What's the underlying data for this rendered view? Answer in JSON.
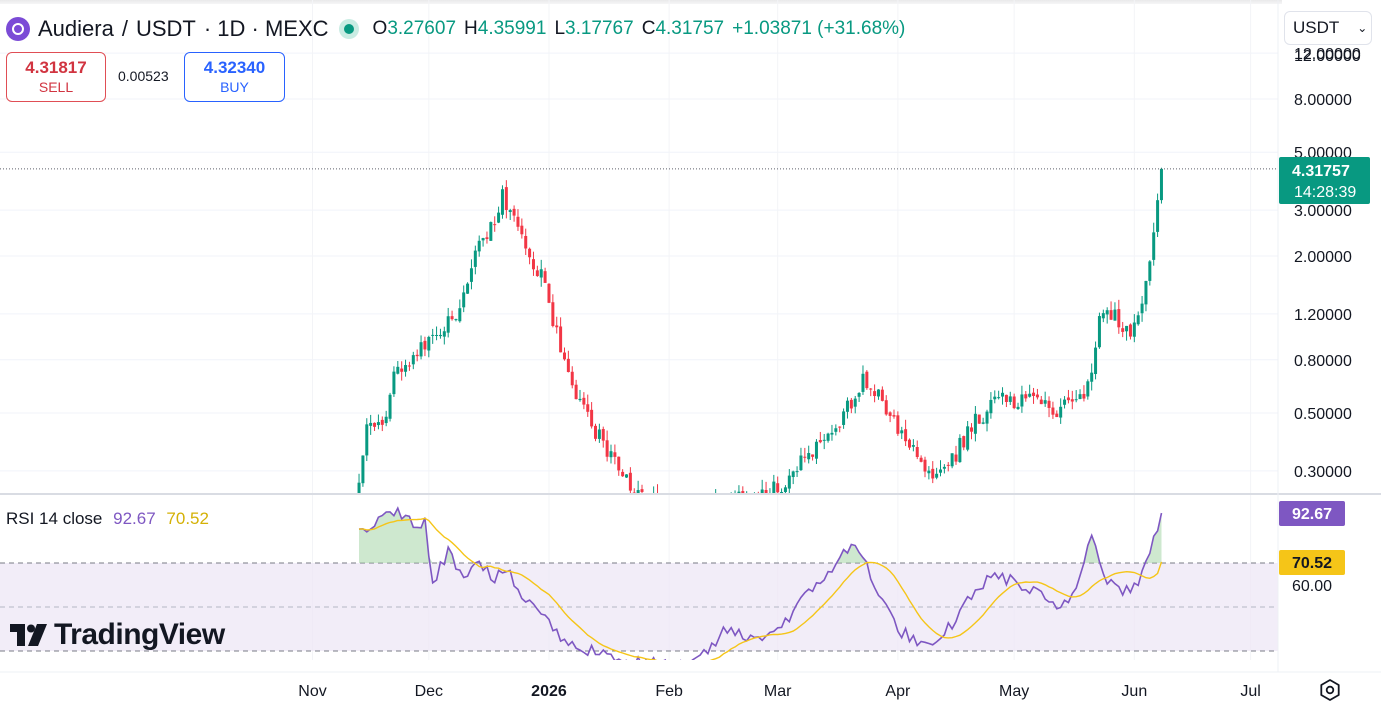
{
  "header": {
    "symbol": "Audiera",
    "separator": "/",
    "quote": "USDT",
    "interval_exchange": "· 1D · MEXC",
    "open_label": "O",
    "open": "3.27607",
    "high_label": "H",
    "high": "4.35991",
    "low_label": "L",
    "low": "3.17767",
    "close_label": "C",
    "close": "4.31757",
    "change": "+1.03871 (+31.68%)"
  },
  "currency_select": {
    "value": "USDT",
    "chevron": "chevron-down-icon"
  },
  "trade": {
    "sell_price": "4.31817",
    "sell_label": "SELL",
    "spread": "0.00523",
    "buy_price": "4.32340",
    "buy_label": "BUY"
  },
  "price_scale": {
    "ticks": [
      "12.00000",
      "8.00000",
      "5.00000",
      "3.00000",
      "2.00000",
      "1.20000",
      "0.80000",
      "0.50000",
      "0.30000"
    ],
    "last_price_label": "4.31757",
    "countdown": "14:28:39"
  },
  "rsi": {
    "title": "RSI 14 close",
    "value": "92.67",
    "ma_value": "70.52",
    "ticks": [
      "60.00"
    ],
    "badge_value": "92.67",
    "badge_ma": "70.52"
  },
  "time_axis": [
    "Nov",
    "Dec",
    "2026",
    "Feb",
    "Mar",
    "Apr",
    "May",
    "Jun",
    "Jul"
  ],
  "branding": {
    "name": "TradingView"
  },
  "colors": {
    "up": "#089981",
    "down": "#f23645",
    "rsi": "#7e57c2",
    "rsi_ma": "#f5c518",
    "rsi_band": "#ede7f6"
  },
  "chart_data": {
    "type": "candlestick",
    "scale": "log",
    "ylim": [
      0.22,
      13.5
    ],
    "x_range": [
      "2025-10-20",
      "2026-07-06"
    ],
    "last": {
      "date": "2026-06-08",
      "open": 3.27607,
      "high": 4.35991,
      "low": 3.17767,
      "close": 4.31757
    },
    "close_anchors": [
      [
        "2025-11-13",
        0.26
      ],
      [
        "2025-11-15",
        0.42
      ],
      [
        "2025-11-20",
        0.46
      ],
      [
        "2025-11-22",
        0.7
      ],
      [
        "2025-11-28",
        0.85
      ],
      [
        "2025-12-02",
        0.95
      ],
      [
        "2025-12-06",
        1.1
      ],
      [
        "2025-12-10",
        1.4
      ],
      [
        "2025-12-13",
        2.0
      ],
      [
        "2025-12-16",
        2.4
      ],
      [
        "2025-12-20",
        3.4
      ],
      [
        "2025-12-24",
        2.6
      ],
      [
        "2025-12-27",
        1.9
      ],
      [
        "2025-12-31",
        1.6
      ],
      [
        "2026-01-03",
        1.0
      ],
      [
        "2026-01-06",
        0.7
      ],
      [
        "2026-01-10",
        0.5
      ],
      [
        "2026-01-16",
        0.36
      ],
      [
        "2026-01-22",
        0.26
      ],
      [
        "2026-01-30",
        0.22
      ],
      [
        "2026-02-08",
        0.2
      ],
      [
        "2026-02-14",
        0.23
      ],
      [
        "2026-02-22",
        0.24
      ],
      [
        "2026-03-01",
        0.26
      ],
      [
        "2026-03-07",
        0.33
      ],
      [
        "2026-03-13",
        0.4
      ],
      [
        "2026-03-18",
        0.5
      ],
      [
        "2026-03-23",
        0.68
      ],
      [
        "2026-03-26",
        0.6
      ],
      [
        "2026-03-30",
        0.5
      ],
      [
        "2026-04-03",
        0.37
      ],
      [
        "2026-04-08",
        0.32
      ],
      [
        "2026-04-11",
        0.28
      ],
      [
        "2026-04-15",
        0.33
      ],
      [
        "2026-04-20",
        0.45
      ],
      [
        "2026-04-27",
        0.56
      ],
      [
        "2026-05-03",
        0.56
      ],
      [
        "2026-05-08",
        0.55
      ],
      [
        "2026-05-12",
        0.5
      ],
      [
        "2026-05-16",
        0.58
      ],
      [
        "2026-05-20",
        0.62
      ],
      [
        "2026-05-23",
        1.1
      ],
      [
        "2026-05-26",
        1.2
      ],
      [
        "2026-05-30",
        1.05
      ],
      [
        "2026-06-02",
        1.1
      ],
      [
        "2026-06-04",
        1.5
      ],
      [
        "2026-06-06",
        2.3
      ],
      [
        "2026-06-07",
        3.27607
      ],
      [
        "2026-06-08",
        4.31757
      ]
    ],
    "rsi_anchors": [
      [
        "2025-11-13",
        85
      ],
      [
        "2025-11-18",
        88
      ],
      [
        "2025-11-23",
        95
      ],
      [
        "2025-11-27",
        86
      ],
      [
        "2025-11-30",
        90
      ],
      [
        "2025-12-02",
        62
      ],
      [
        "2025-12-06",
        75
      ],
      [
        "2025-12-10",
        65
      ],
      [
        "2025-12-14",
        72
      ],
      [
        "2025-12-18",
        62
      ],
      [
        "2025-12-21",
        68
      ],
      [
        "2025-12-24",
        55
      ],
      [
        "2025-12-28",
        52
      ],
      [
        "2026-01-02",
        40
      ],
      [
        "2026-01-07",
        32
      ],
      [
        "2026-01-14",
        30
      ],
      [
        "2026-01-22",
        25
      ],
      [
        "2026-01-30",
        24
      ],
      [
        "2026-02-06",
        22
      ],
      [
        "2026-02-12",
        32
      ],
      [
        "2026-02-16",
        40
      ],
      [
        "2026-02-22",
        35
      ],
      [
        "2026-03-01",
        40
      ],
      [
        "2026-03-07",
        52
      ],
      [
        "2026-03-12",
        62
      ],
      [
        "2026-03-17",
        72
      ],
      [
        "2026-03-20",
        78
      ],
      [
        "2026-03-24",
        70
      ],
      [
        "2026-03-27",
        56
      ],
      [
        "2026-04-01",
        40
      ],
      [
        "2026-04-06",
        34
      ],
      [
        "2026-04-10",
        30
      ],
      [
        "2026-04-16",
        45
      ],
      [
        "2026-04-21",
        58
      ],
      [
        "2026-04-27",
        65
      ],
      [
        "2026-05-02",
        60
      ],
      [
        "2026-05-08",
        55
      ],
      [
        "2026-05-12",
        48
      ],
      [
        "2026-05-17",
        58
      ],
      [
        "2026-05-21",
        85
      ],
      [
        "2026-05-25",
        62
      ],
      [
        "2026-05-29",
        58
      ],
      [
        "2026-06-02",
        60
      ],
      [
        "2026-06-05",
        75
      ],
      [
        "2026-06-07",
        85
      ],
      [
        "2026-06-08",
        92.67
      ]
    ],
    "rsi_ma_last": 70.52,
    "rsi_levels": [
      70,
      50,
      30
    ]
  }
}
